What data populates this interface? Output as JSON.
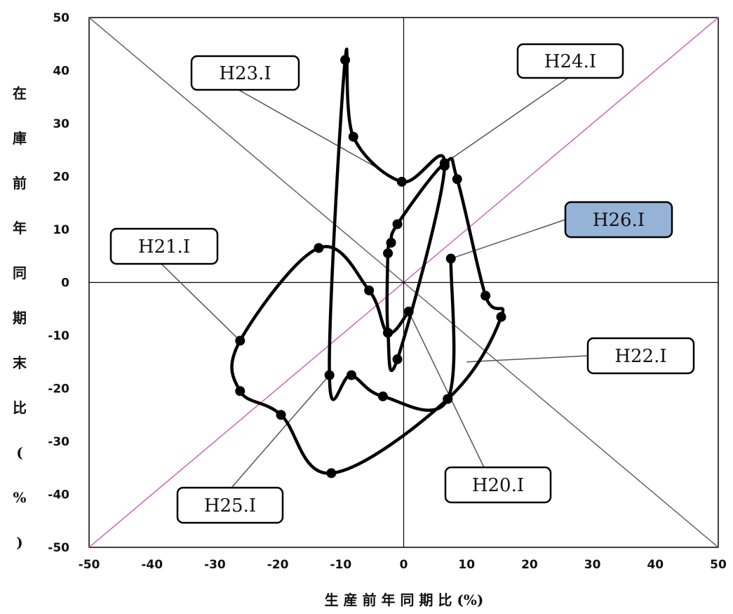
{
  "chart_data": {
    "type": "scatter",
    "title": "",
    "xlabel": "生 産 前 年 同 期 比 (%)",
    "ylabel": "在 庫 前 年 同 期 末 比 (%)",
    "xlim": [
      -50,
      50
    ],
    "ylim": [
      -50,
      50
    ],
    "xticks": [
      "-50",
      "-40",
      "-30",
      "-20",
      "-10",
      "0",
      "10",
      "20",
      "30",
      "40",
      "50"
    ],
    "yticks": [
      "50",
      "40",
      "30",
      "20",
      "10",
      "0",
      "-10",
      "-20",
      "-30",
      "-40",
      "-50"
    ],
    "grid": false,
    "reference_lines": [
      {
        "name": "diagonal-equal",
        "points": [
          [
            -50,
            -50
          ],
          [
            50,
            50
          ]
        ],
        "color": "#cc66bb"
      },
      {
        "name": "diagonal-inverse",
        "points": [
          [
            -50,
            50
          ],
          [
            50,
            -50
          ]
        ],
        "color": "#666666"
      }
    ],
    "series": [
      {
        "points": [
          [
            0.8,
            -5.5
          ],
          [
            -2.5,
            -9.5
          ],
          [
            -5.5,
            -1.5
          ],
          [
            -13.5,
            6.5
          ],
          [
            -26,
            -11
          ],
          [
            -26,
            -20.5
          ],
          [
            -19.5,
            -25
          ],
          [
            -11.5,
            -36
          ],
          [
            7,
            -22
          ],
          [
            15.5,
            -6.5
          ],
          [
            13,
            -2.5
          ],
          [
            8.5,
            19.5
          ],
          [
            6.5,
            22.5
          ],
          [
            -1,
            11
          ],
          [
            -2,
            7.5
          ],
          [
            -2.5,
            5.5
          ],
          [
            -2.5,
            -9.5
          ],
          [
            -1,
            -14.5
          ],
          [
            6.5,
            22
          ],
          [
            -0.3,
            19
          ],
          [
            -8,
            27.5
          ],
          [
            -9.3,
            42
          ],
          [
            -11.8,
            -17.5
          ],
          [
            -8.3,
            -17.5
          ],
          [
            -3.3,
            -21.5
          ],
          [
            7,
            -22
          ],
          [
            7.5,
            4.5
          ]
        ],
        "color": "#000000"
      }
    ],
    "annotations": [
      {
        "text": "H23.Ⅰ",
        "target": [
          -0.3,
          19
        ],
        "highlight": false
      },
      {
        "text": "H24.Ⅰ",
        "target": [
          6.5,
          22.5
        ],
        "highlight": false
      },
      {
        "text": "H21.Ⅰ",
        "target": [
          -26,
          -11
        ],
        "highlight": false
      },
      {
        "text": "H26.Ⅰ",
        "target": [
          7.5,
          4.5
        ],
        "highlight": true
      },
      {
        "text": "H22.Ⅰ",
        "target": [
          10,
          -15
        ],
        "highlight": false
      },
      {
        "text": "H20.Ⅰ",
        "target": [
          0.8,
          -5.5
        ],
        "highlight": false
      },
      {
        "text": "H25.Ⅰ",
        "target": [
          -11.8,
          -17.5
        ],
        "highlight": false
      }
    ],
    "colors": {
      "highlight_box": "#95b3d7",
      "box": "#ffffff"
    }
  }
}
